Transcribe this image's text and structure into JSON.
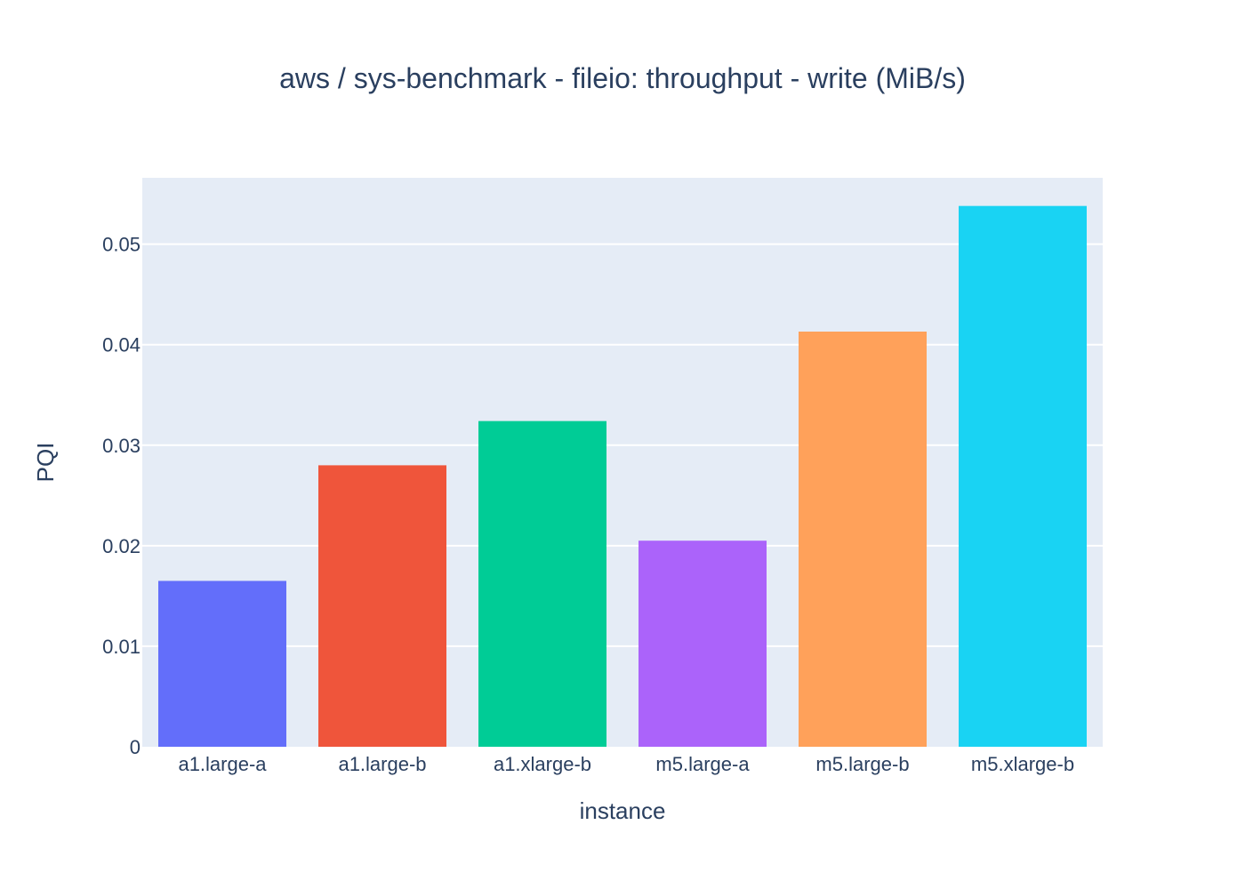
{
  "chart_data": {
    "type": "bar",
    "title": "aws / sys-benchmark - fileio: throughput - write (MiB/s)",
    "xlabel": "instance",
    "ylabel": "PQI",
    "categories": [
      "a1.large-a",
      "a1.large-b",
      "a1.xlarge-b",
      "m5.large-a",
      "m5.large-b",
      "m5.xlarge-b"
    ],
    "values": [
      0.0165,
      0.028,
      0.0324,
      0.0205,
      0.0413,
      0.0538
    ],
    "colors": [
      "#636efa",
      "#ef553b",
      "#00cc96",
      "#ab63fa",
      "#ffa15a",
      "#19d3f3"
    ],
    "ylim": [
      0,
      0.0566
    ],
    "yticks": [
      0,
      0.01,
      0.02,
      0.03,
      0.04,
      0.05
    ],
    "ytick_labels": [
      "0",
      "0.01",
      "0.02",
      "0.03",
      "0.04",
      "0.05"
    ],
    "grid": true,
    "plot_background": "#e5ecf6",
    "gridline_color": "#ffffff"
  }
}
